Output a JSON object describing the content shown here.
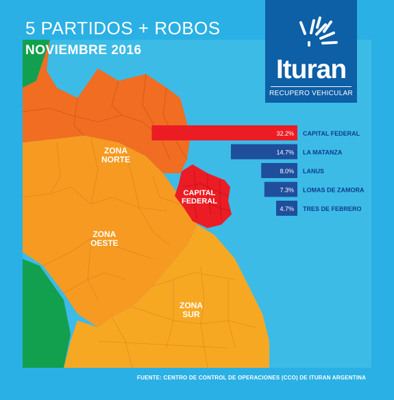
{
  "header": {
    "title": "5 PARTIDOS + ROBOS",
    "subtitle": "NOVIEMBRE 2016"
  },
  "logo": {
    "wordmark": "Ituran",
    "tagline": "RECUPERO VEHICULAR"
  },
  "zones": {
    "norte": "ZONA\nNORTE",
    "oeste": "ZONA\nOESTE",
    "sur": "ZONA\nSUR",
    "capital": "CAPITAL\nFEDERAL"
  },
  "chart_data": {
    "type": "bar",
    "orientation": "horizontal",
    "categories": [
      "CAPITAL FEDERAL",
      "LA MATANZA",
      "LANUS",
      "LOMAS DE ZAMORA",
      "TRES DE FEBRERO"
    ],
    "values": [
      32.2,
      14.7,
      8.0,
      7.3,
      4.7
    ],
    "value_labels": [
      "32.2%",
      "14.7%",
      "8.0%",
      "7.3%",
      "4.7%"
    ],
    "colors": [
      "#ec1c24",
      "#1f4e9c",
      "#1f4e9c",
      "#1f4e9c",
      "#1f4e9c"
    ]
  },
  "source": "FUENTE: CENTRO DE CONTROL DE OPERACIONES (CCO) DE ITURAN ARGENTINA",
  "colors": {
    "background": "#2ab0e4",
    "norte": "#f06d22",
    "oeste": "#f79a21",
    "sur": "#f7a823",
    "capital": "#ec1c24",
    "outer": "#12a04e",
    "logo": "#0d5fa6"
  }
}
